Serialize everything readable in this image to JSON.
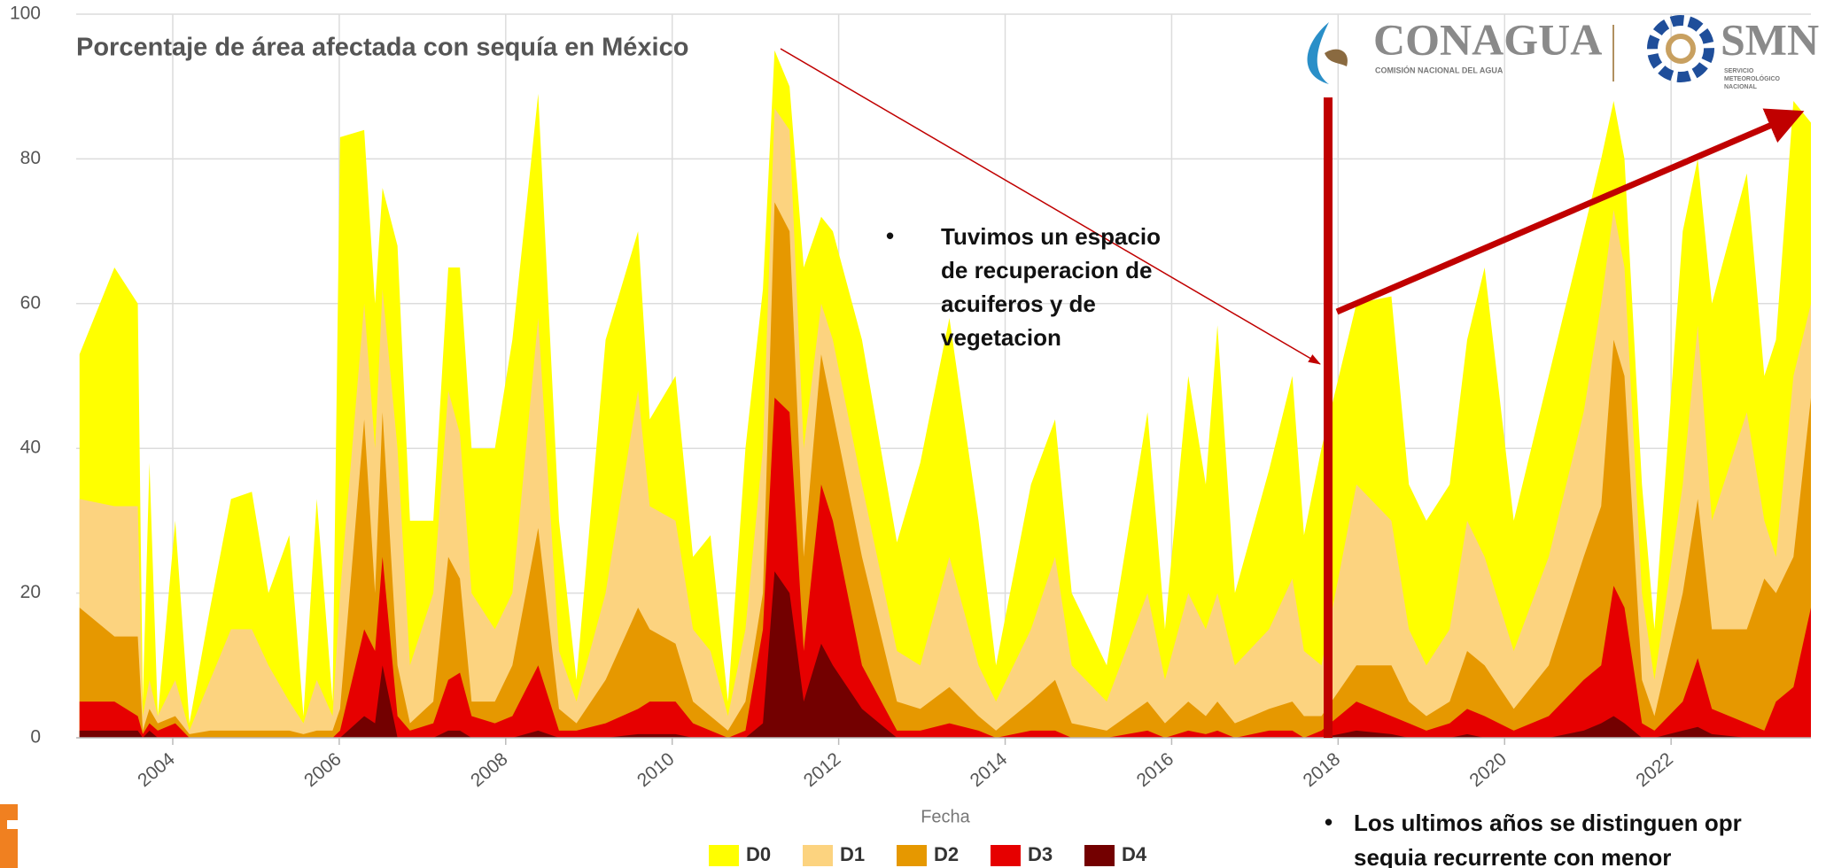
{
  "chart_data": {
    "type": "area",
    "title": "Porcentaje de área afectada con sequía en México",
    "x_label": "Fecha",
    "x": [
      2002.88,
      2003.3,
      2003.58,
      2003.64,
      2003.72,
      2003.82,
      2004.03,
      2004.2,
      2004.45,
      2004.7,
      2004.95,
      2005.15,
      2005.4,
      2005.57,
      2005.73,
      2005.92,
      2006.01,
      2006.3,
      2006.43,
      2006.52,
      2006.7,
      2006.85,
      2007.13,
      2007.31,
      2007.45,
      2007.59,
      2007.87,
      2008.08,
      2008.39,
      2008.64,
      2008.85,
      2009.2,
      2009.59,
      2009.73,
      2010.04,
      2010.25,
      2010.46,
      2010.67,
      2010.88,
      2011.09,
      2011.23,
      2011.41,
      2011.58,
      2011.79,
      2011.93,
      2012.28,
      2012.7,
      2012.98,
      2013.33,
      2013.68,
      2013.89,
      2014.31,
      2014.6,
      2014.8,
      2015.22,
      2015.71,
      2015.92,
      2016.2,
      2016.41,
      2016.55,
      2016.76,
      2017.17,
      2017.45,
      2017.59,
      2017.8,
      2018.22,
      2018.64,
      2018.85,
      2019.06,
      2019.34,
      2019.55,
      2019.76,
      2020.11,
      2020.53,
      2020.95,
      2021.16,
      2021.31,
      2021.44,
      2021.65,
      2021.8,
      2022.14,
      2022.32,
      2022.49,
      2022.91,
      2023.12,
      2023.26,
      2023.47,
      2023.68
    ],
    "xlim": [
      2002.84,
      2023.68
    ],
    "xticks": [
      2004,
      2006,
      2008,
      2010,
      2012,
      2014,
      2016,
      2018,
      2020,
      2022
    ],
    "ylim": [
      0,
      100
    ],
    "yticks": [
      0,
      20,
      40,
      60,
      80,
      100
    ],
    "grid": true,
    "legend": "bottom",
    "series": [
      {
        "name": "D0",
        "color": "#ffff00",
        "values": [
          53,
          65,
          60,
          5,
          38,
          3,
          30,
          2,
          18,
          33,
          34,
          20,
          28,
          3,
          33,
          5,
          83,
          84,
          60,
          76,
          68,
          30,
          30,
          65,
          65,
          40,
          40,
          55,
          89,
          30,
          8,
          55,
          70,
          44,
          50,
          25,
          28,
          5,
          40,
          62,
          95,
          90,
          65,
          72,
          70,
          55,
          27,
          38,
          58,
          30,
          10,
          35,
          44,
          20,
          10,
          45,
          15,
          50,
          35,
          57,
          20,
          37,
          50,
          28,
          40,
          60,
          61,
          35,
          30,
          35,
          55,
          65,
          30,
          50,
          70,
          80,
          88,
          80,
          35,
          15,
          70,
          80,
          60,
          78,
          50,
          55,
          88,
          85
        ]
      },
      {
        "name": "D1",
        "color": "#fcd37f",
        "values": [
          33,
          32,
          32,
          3,
          8,
          3,
          8,
          1,
          8,
          15,
          15,
          10,
          5,
          2,
          8,
          3,
          20,
          60,
          40,
          62,
          40,
          10,
          20,
          48,
          42,
          20,
          15,
          20,
          58,
          12,
          5,
          20,
          48,
          32,
          30,
          15,
          12,
          3,
          15,
          40,
          87,
          84,
          40,
          60,
          55,
          35,
          12,
          10,
          25,
          10,
          5,
          15,
          25,
          10,
          5,
          20,
          8,
          20,
          15,
          20,
          10,
          15,
          22,
          12,
          10,
          35,
          30,
          15,
          10,
          15,
          30,
          25,
          12,
          25,
          45,
          60,
          73,
          65,
          20,
          8,
          35,
          57,
          30,
          45,
          30,
          25,
          50,
          60
        ]
      },
      {
        "name": "D2",
        "color": "#e69800",
        "values": [
          18,
          14,
          14,
          1,
          4,
          2,
          3,
          0.5,
          1,
          1,
          1,
          1,
          1,
          0.5,
          1,
          1,
          4,
          44,
          20,
          45,
          10,
          2,
          5,
          25,
          22,
          5,
          5,
          10,
          29,
          4,
          2,
          8,
          18,
          15,
          13,
          5,
          3,
          1,
          5,
          20,
          74,
          70,
          25,
          53,
          45,
          25,
          5,
          4,
          7,
          3,
          1,
          5,
          8,
          2,
          1,
          5,
          2,
          5,
          3,
          5,
          2,
          4,
          5,
          3,
          3,
          10,
          10,
          5,
          3,
          5,
          12,
          10,
          4,
          10,
          25,
          32,
          55,
          50,
          8,
          3,
          20,
          33,
          15,
          15,
          22,
          20,
          25,
          47
        ]
      },
      {
        "name": "D3",
        "color": "#e60000",
        "values": [
          5,
          5,
          3,
          0.5,
          2,
          1,
          2,
          0,
          0,
          0,
          0,
          0,
          0,
          0,
          0,
          0,
          1,
          15,
          12,
          25,
          3,
          1,
          2,
          8,
          9,
          3,
          2,
          3,
          10,
          1,
          1,
          2,
          4,
          5,
          5,
          2,
          1,
          0,
          1,
          15,
          47,
          45,
          12,
          35,
          30,
          10,
          1,
          1,
          2,
          1,
          0,
          1,
          1,
          0,
          0,
          1,
          0,
          1,
          0.5,
          1,
          0,
          1,
          1,
          0,
          1,
          5,
          3,
          2,
          1,
          2,
          4,
          3,
          1,
          3,
          8,
          10,
          21,
          18,
          2,
          1,
          5,
          11,
          4,
          2,
          1,
          5,
          7,
          18
        ]
      },
      {
        "name": "D4",
        "color": "#730000",
        "values": [
          1,
          1,
          1,
          0,
          1,
          0,
          0,
          0,
          0,
          0,
          0,
          0,
          0,
          0,
          0,
          0,
          0,
          3,
          2,
          10,
          0,
          0,
          0,
          1,
          1,
          0,
          0,
          0,
          1,
          0,
          0,
          0,
          0.5,
          0.5,
          0.5,
          0,
          0,
          0,
          0,
          2,
          23,
          20,
          5,
          13,
          10,
          4,
          0,
          0,
          0,
          0,
          0,
          0,
          0,
          0,
          0,
          0,
          0,
          0,
          0,
          0,
          0,
          0,
          0,
          0,
          0,
          1,
          0.5,
          0,
          0,
          0,
          0.5,
          0,
          0,
          0,
          1,
          2,
          3,
          2,
          0,
          0,
          1,
          1.5,
          0.5,
          0,
          0,
          0,
          0,
          0
        ]
      }
    ]
  },
  "annotations": [
    {
      "lines": [
        "Tuvimos un espacio",
        "de recuperacion de",
        "acuiferos y de",
        "vegetacion"
      ]
    },
    {
      "lines": [
        "Los ultimos años se distinguen opr",
        "sequia recurrente con menor"
      ]
    }
  ],
  "logos": {
    "conagua": "CONAGUA",
    "conagua_sub": "COMISIÓN NACIONAL DEL AGUA",
    "smn": "SMN",
    "smn_sub": [
      "SERVICIO",
      "METEOROLÓGICO",
      "NACIONAL"
    ]
  }
}
